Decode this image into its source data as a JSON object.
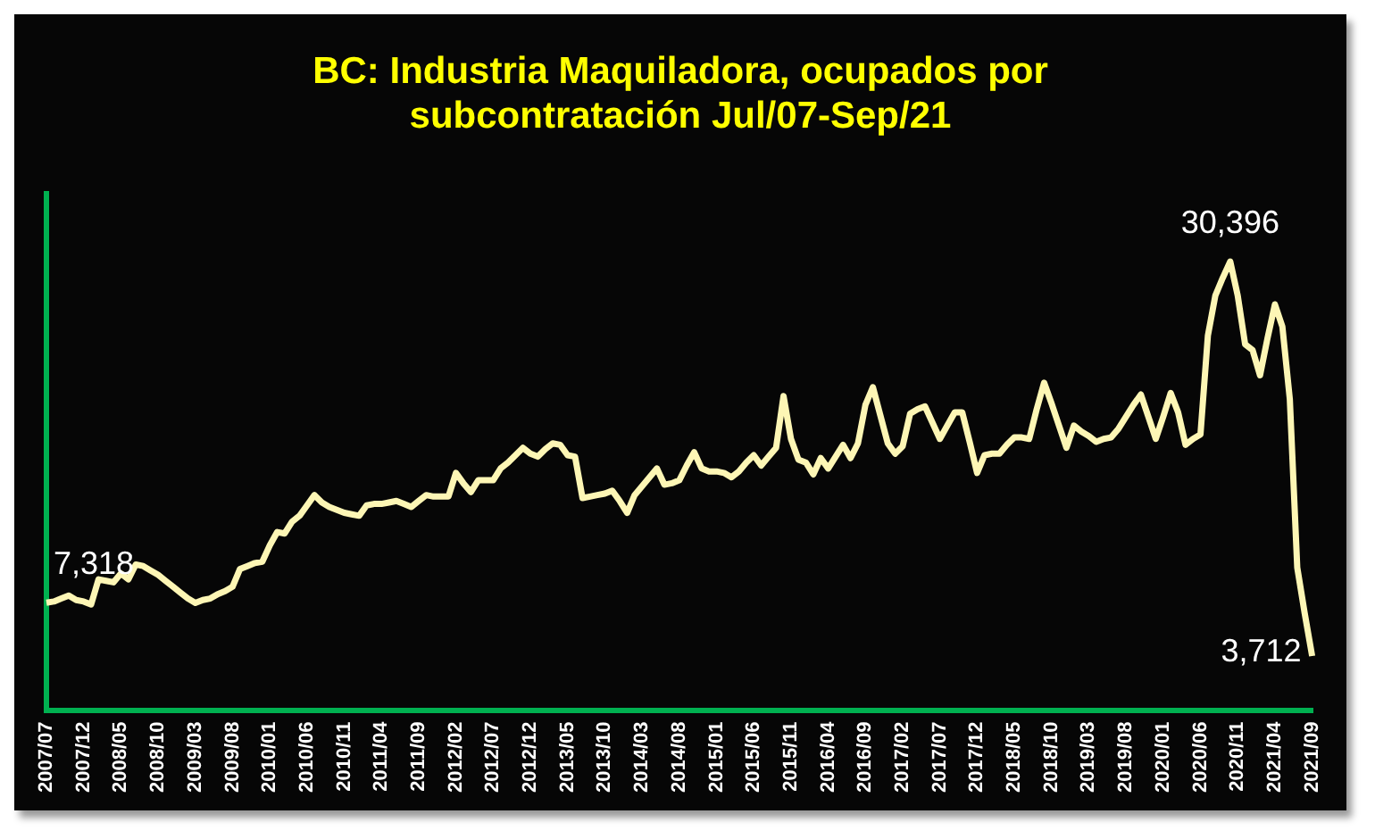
{
  "chart_data": {
    "type": "line",
    "title": "BC: Industria Maquiladora, ocupados por\nsubcontratación Jul/07-Sep/21",
    "categories": [
      "2007/07",
      null,
      null,
      null,
      null,
      "2007/12",
      null,
      null,
      null,
      null,
      "2008/05",
      null,
      null,
      null,
      null,
      "2008/10",
      null,
      null,
      null,
      null,
      "2009/03",
      null,
      null,
      null,
      null,
      "2009/08",
      null,
      null,
      null,
      null,
      "2010/01",
      null,
      null,
      null,
      null,
      "2010/06",
      null,
      null,
      null,
      null,
      "2010/11",
      null,
      null,
      null,
      null,
      "2011/04",
      null,
      null,
      null,
      null,
      "2011/09",
      null,
      null,
      null,
      null,
      "2012/02",
      null,
      null,
      null,
      null,
      "2012/07",
      null,
      null,
      null,
      null,
      "2012/12",
      null,
      null,
      null,
      null,
      "2013/05",
      null,
      null,
      null,
      null,
      "2013/10",
      null,
      null,
      null,
      null,
      "2014/03",
      null,
      null,
      null,
      null,
      "2014/08",
      null,
      null,
      null,
      null,
      "2015/01",
      null,
      null,
      null,
      null,
      "2015/06",
      null,
      null,
      null,
      null,
      "2015/11",
      null,
      null,
      null,
      null,
      "2016/04",
      null,
      null,
      null,
      null,
      "2016/09",
      null,
      null,
      null,
      null,
      "2017/02",
      null,
      null,
      null,
      null,
      "2017/07",
      null,
      null,
      null,
      null,
      "2017/12",
      null,
      null,
      null,
      null,
      "2018/05",
      null,
      null,
      null,
      null,
      "2018/10",
      null,
      null,
      null,
      null,
      "2019/03",
      null,
      null,
      null,
      null,
      "2019/08",
      null,
      null,
      null,
      null,
      "2020/01",
      null,
      null,
      null,
      null,
      "2020/06",
      null,
      null,
      null,
      null,
      "2020/11",
      null,
      null,
      null,
      null,
      "2021/04",
      null,
      null,
      null,
      null,
      "2021/09"
    ],
    "series": [
      {
        "color": "#fdf6b5",
        "values": [
          7318,
          7400,
          7600,
          7800,
          7500,
          7400,
          7200,
          8900,
          8800,
          8700,
          9300,
          8900,
          9900,
          9800,
          9500,
          9200,
          8800,
          8400,
          8000,
          7600,
          7300,
          7500,
          7600,
          7900,
          8100,
          8400,
          9600,
          9800,
          10000,
          10100,
          11200,
          12100,
          12000,
          12800,
          13200,
          13900,
          14600,
          14100,
          13800,
          13600,
          13400,
          13300,
          13200,
          13900,
          14000,
          14000,
          14100,
          14200,
          14000,
          13800,
          14200,
          14600,
          14500,
          14500,
          14500,
          16100,
          15400,
          14800,
          15600,
          15600,
          15600,
          16400,
          16800,
          17300,
          17800,
          17400,
          17200,
          17700,
          18100,
          18000,
          17300,
          17200,
          14400,
          14500,
          14600,
          14700,
          14900,
          14200,
          13400,
          14600,
          15200,
          15800,
          16400,
          15300,
          15400,
          15600,
          16600,
          17500,
          16400,
          16200,
          16200,
          16100,
          15800,
          16200,
          16800,
          17300,
          16600,
          17200,
          17800,
          21300,
          18400,
          17000,
          16800,
          16000,
          17100,
          16400,
          17200,
          18000,
          17100,
          18100,
          20700,
          21900,
          20000,
          18100,
          17400,
          17900,
          20100,
          20400,
          20600,
          19500,
          18400,
          19300,
          20200,
          20200,
          18200,
          16100,
          17300,
          17400,
          17400,
          18000,
          18500,
          18500,
          18400,
          20400,
          22200,
          20800,
          19300,
          17800,
          19300,
          18900,
          18600,
          18200,
          18400,
          18500,
          19100,
          19900,
          20700,
          21400,
          19900,
          18400,
          19900,
          21500,
          20200,
          18000,
          18400,
          18700,
          25400,
          28100,
          29300,
          30396,
          28100,
          24800,
          24400,
          22700,
          25200,
          27500,
          26000,
          21100,
          9700,
          6600,
          3712
        ],
        "value_labels": [
          "7,318",
          null,
          null,
          null,
          null,
          null,
          null,
          null,
          null,
          null,
          null,
          null,
          null,
          null,
          null,
          null,
          null,
          null,
          null,
          null,
          null,
          null,
          null,
          null,
          null,
          null,
          null,
          null,
          null,
          null,
          null,
          null,
          null,
          null,
          null,
          null,
          null,
          null,
          null,
          null,
          null,
          null,
          null,
          null,
          null,
          null,
          null,
          null,
          null,
          null,
          null,
          null,
          null,
          null,
          null,
          null,
          null,
          null,
          null,
          null,
          null,
          null,
          null,
          null,
          null,
          null,
          null,
          null,
          null,
          null,
          null,
          null,
          null,
          null,
          null,
          null,
          null,
          null,
          null,
          null,
          null,
          null,
          null,
          null,
          null,
          null,
          null,
          null,
          null,
          null,
          null,
          null,
          null,
          null,
          null,
          null,
          null,
          null,
          null,
          null,
          null,
          null,
          null,
          null,
          null,
          null,
          null,
          null,
          null,
          null,
          null,
          null,
          null,
          null,
          null,
          null,
          null,
          null,
          null,
          null,
          null,
          null,
          null,
          null,
          null,
          null,
          null,
          null,
          null,
          null,
          null,
          null,
          null,
          null,
          null,
          null,
          null,
          null,
          null,
          null,
          null,
          null,
          null,
          null,
          null,
          null,
          null,
          null,
          null,
          null,
          null,
          null,
          null,
          null,
          null,
          null,
          null,
          null,
          null,
          "30,396",
          null,
          null,
          null,
          null,
          null,
          null,
          null,
          null,
          null,
          null,
          "3,712"
        ]
      }
    ],
    "tick_labels": "x",
    "legend": false,
    "marker": "none"
  }
}
